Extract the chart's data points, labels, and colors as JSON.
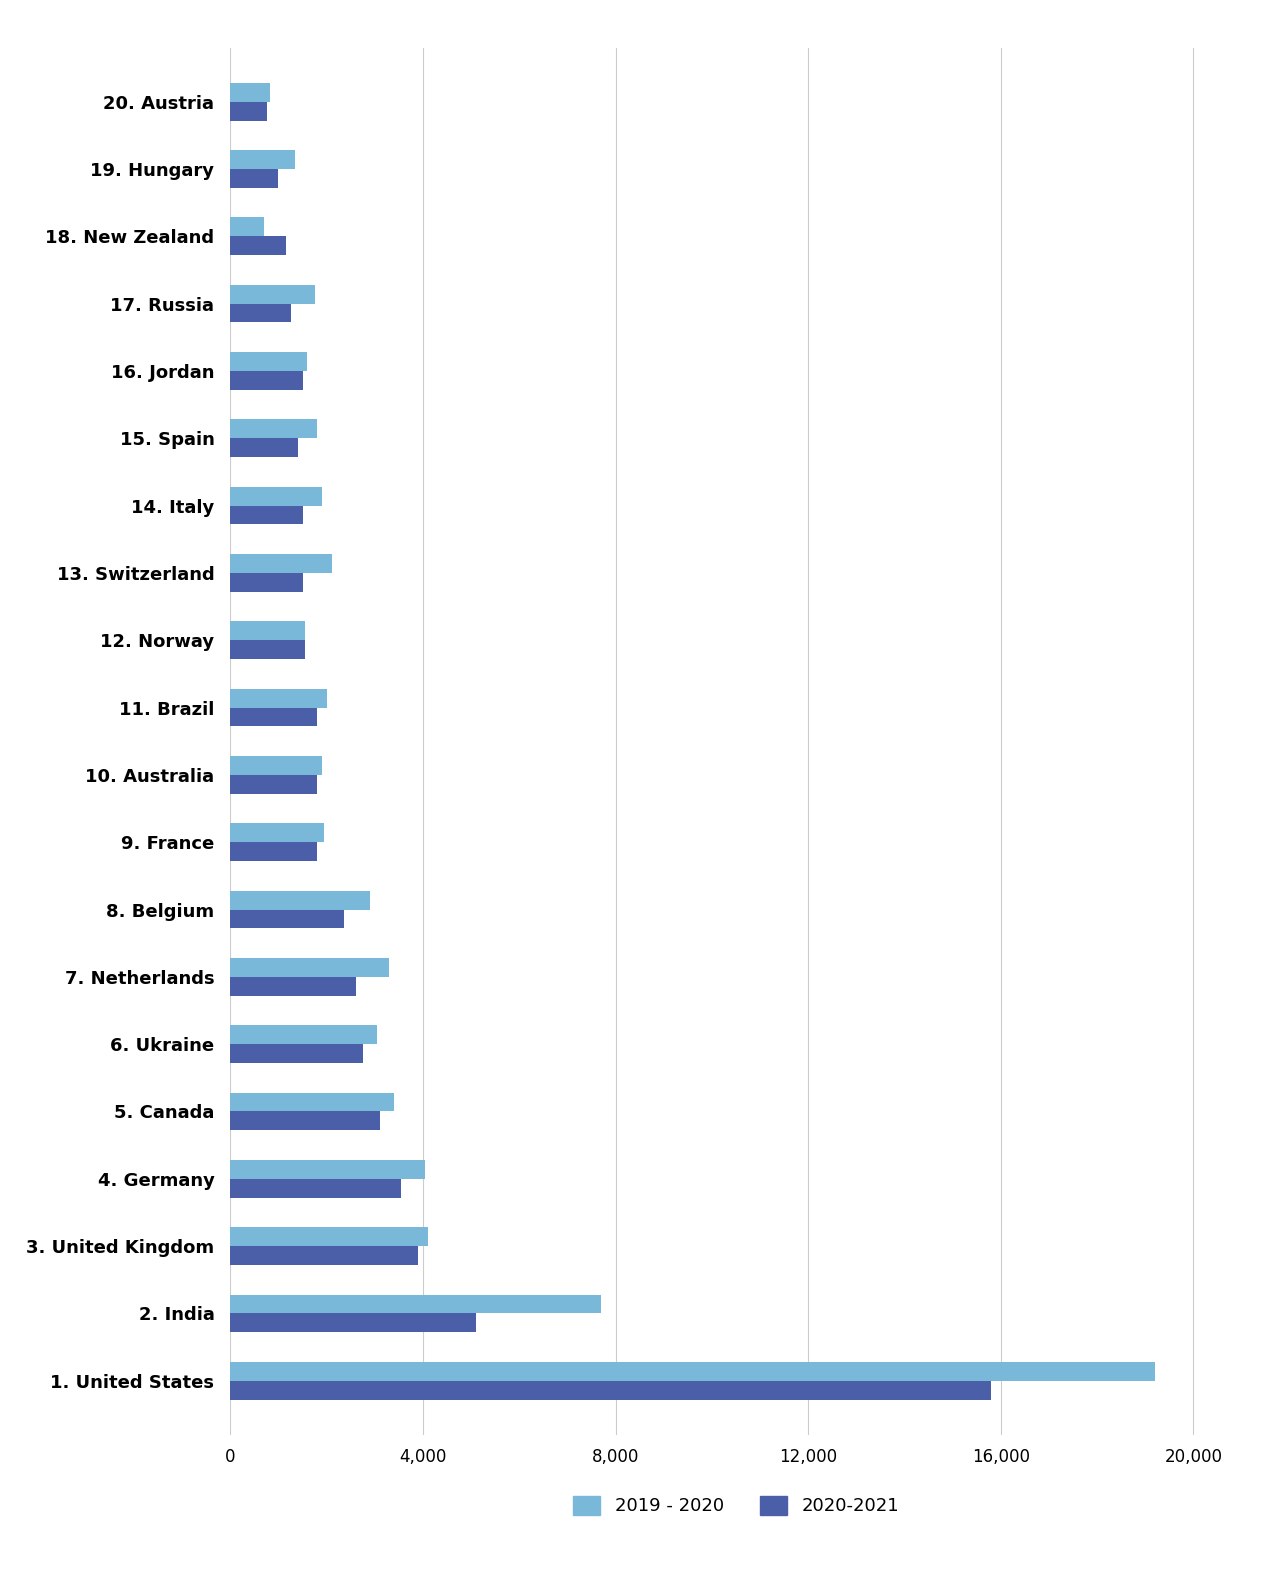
{
  "countries": [
    "1. United States",
    "2. India",
    "3. United Kingdom",
    "4. Germany",
    "5. Canada",
    "6. Ukraine",
    "7. Netherlands",
    "8. Belgium",
    "9. France",
    "10. Australia",
    "11. Brazil",
    "12. Norway",
    "13. Switzerland",
    "14. Italy",
    "15. Spain",
    "16. Jordan",
    "17. Russia",
    "18. New Zealand",
    "19. Hungary",
    "20. Austria"
  ],
  "values_2019_2020": [
    19200,
    7700,
    4100,
    4050,
    3400,
    3050,
    3300,
    2900,
    1950,
    1900,
    2000,
    1550,
    2100,
    1900,
    1800,
    1600,
    1750,
    700,
    1350,
    820
  ],
  "values_2020_2021": [
    15800,
    5100,
    3900,
    3550,
    3100,
    2750,
    2600,
    2350,
    1800,
    1800,
    1800,
    1550,
    1500,
    1500,
    1400,
    1500,
    1250,
    1150,
    980,
    750
  ],
  "color_2019_2020": "#7ab8d9",
  "color_2020_2021": "#4a5fa8",
  "xlabel": "",
  "xlim": [
    0,
    21000
  ],
  "xticks": [
    0,
    4000,
    8000,
    12000,
    16000,
    20000
  ],
  "xticklabels": [
    "0",
    "4,000",
    "8,000",
    "12,000",
    "16,000",
    "20,000"
  ],
  "legend_2019_2020": "2019 - 2020",
  "legend_2020_2021": "2020-2021",
  "background_color": "#ffffff",
  "grid_color": "#cccccc",
  "bar_height": 0.28,
  "label_fontsize": 13,
  "tick_fontsize": 12
}
